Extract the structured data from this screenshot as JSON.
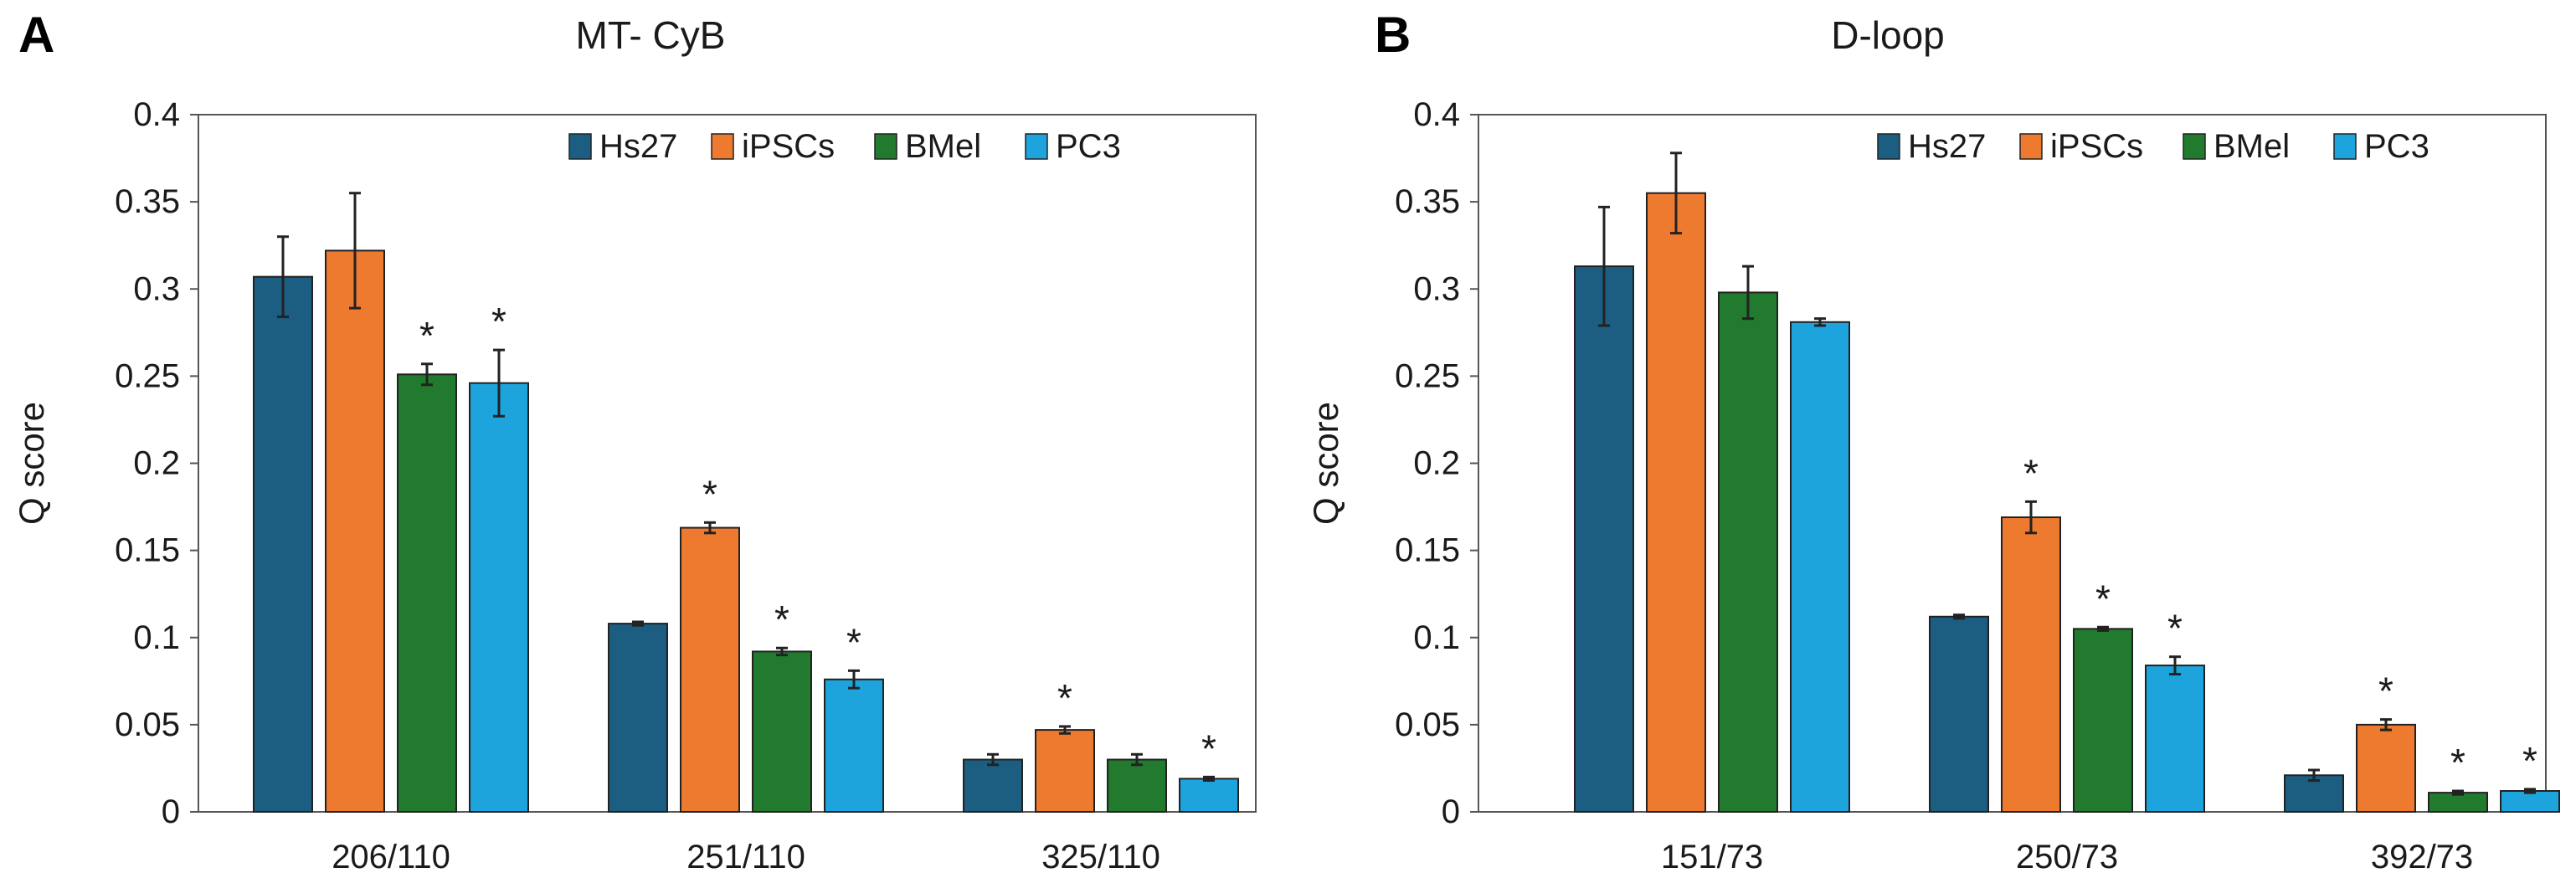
{
  "chart_data": [
    {
      "panel": "A",
      "type": "bar",
      "title": "MT- CyB",
      "xlabel": "",
      "ylabel": "Q score",
      "ylim": [
        0,
        0.4
      ],
      "yticks": [
        "0",
        "0.05",
        "0.1",
        "0.15",
        "0.2",
        "0.25",
        "0.3",
        "0.35",
        "0.4"
      ],
      "ytick_values": [
        0,
        0.05,
        0.1,
        0.15,
        0.2,
        0.25,
        0.3,
        0.35,
        0.4
      ],
      "categories": [
        "206/110",
        "251/110",
        "325/110"
      ],
      "legend_position": "top-right",
      "series": [
        {
          "name": "Hs27",
          "color": "#1b5e82",
          "values": [
            0.307,
            0.108,
            0.03
          ],
          "errors": [
            0.023,
            0.001,
            0.003
          ],
          "significant": [
            false,
            false,
            false
          ]
        },
        {
          "name": "iPSCs",
          "color": "#ee7a30",
          "values": [
            0.322,
            0.163,
            0.047
          ],
          "errors": [
            0.033,
            0.003,
            0.002
          ],
          "significant": [
            false,
            true,
            true
          ]
        },
        {
          "name": "BMel",
          "color": "#217a2e",
          "values": [
            0.251,
            0.092,
            0.03
          ],
          "errors": [
            0.006,
            0.002,
            0.003
          ],
          "significant": [
            true,
            true,
            false
          ]
        },
        {
          "name": "PC3",
          "color": "#1ea4dc",
          "values": [
            0.246,
            0.076,
            0.019
          ],
          "errors": [
            0.019,
            0.005,
            0.001
          ],
          "significant": [
            true,
            true,
            true
          ]
        }
      ],
      "significance_marker": "*"
    },
    {
      "panel": "B",
      "type": "bar",
      "title": "D-loop",
      "xlabel": "",
      "ylabel": "Q score",
      "ylim": [
        0,
        0.4
      ],
      "yticks": [
        "0",
        "0.05",
        "0.1",
        "0.15",
        "0.2",
        "0.25",
        "0.3",
        "0.35",
        "0.4"
      ],
      "ytick_values": [
        0,
        0.05,
        0.1,
        0.15,
        0.2,
        0.25,
        0.3,
        0.35,
        0.4
      ],
      "categories": [
        "151/73",
        "250/73",
        "392/73"
      ],
      "legend_position": "top-right",
      "series": [
        {
          "name": "Hs27",
          "color": "#1b5e82",
          "values": [
            0.313,
            0.112,
            0.021
          ],
          "errors": [
            0.034,
            0.001,
            0.003
          ],
          "significant": [
            false,
            false,
            false
          ]
        },
        {
          "name": "iPSCs",
          "color": "#ee7a30",
          "values": [
            0.355,
            0.169,
            0.05
          ],
          "errors": [
            0.023,
            0.009,
            0.003
          ],
          "significant": [
            false,
            true,
            true
          ]
        },
        {
          "name": "BMel",
          "color": "#217a2e",
          "values": [
            0.298,
            0.105,
            0.011
          ],
          "errors": [
            0.015,
            0.001,
            0.001
          ],
          "significant": [
            false,
            true,
            true
          ]
        },
        {
          "name": "PC3",
          "color": "#1ea4dc",
          "values": [
            0.281,
            0.084,
            0.012
          ],
          "errors": [
            0.002,
            0.005,
            0.001
          ],
          "significant": [
            false,
            true,
            true
          ]
        }
      ],
      "significance_marker": "*"
    }
  ]
}
